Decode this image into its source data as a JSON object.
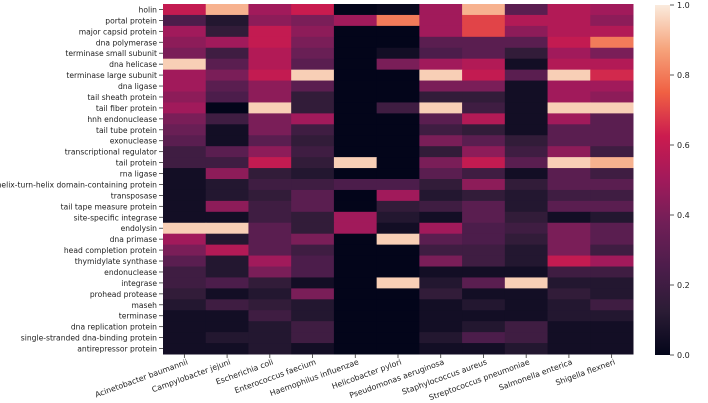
{
  "chart_data": {
    "type": "heatmap",
    "title": "",
    "xlabel": "",
    "ylabel": "",
    "colormap": "rocket",
    "color_range": [
      0.0,
      1.0
    ],
    "colorbar_ticks": [
      "0.0",
      "0.2",
      "0.4",
      "0.6",
      "0.8",
      "1.0"
    ],
    "columns": [
      "Acinetobacter baumannii",
      "Campylobacter jejuni",
      "Escherichia coli",
      "Enterococcus faecium",
      "Haemophilus influenzae",
      "Helicobacter pylori",
      "Pseudomonas aeruginosa",
      "Staphylococcus aureus",
      "Streptococcus pneumoniae",
      "Salmonella enterica",
      "Shigella flexneri"
    ],
    "rows": [
      "holin",
      "portal protein",
      "major capsid protein",
      "dna polymerase",
      "terminase small subunit",
      "dna helicase",
      "terminase large subunit",
      "dna ligase",
      "tail sheath protein",
      "tail fiber protein",
      "hnh endonuclease",
      "tail tube protein",
      "exonuclease",
      "transcriptional regulator",
      "tail protein",
      "rna ligase",
      "helix-turn-helix domain-containing protein",
      "transposase",
      "tail tape measure protein",
      "site-specific integrase",
      "endolysin",
      "dna primase",
      "head completion protein",
      "thymidylate synthase",
      "endonuclease",
      "integrase",
      "prohead protease",
      "maseh",
      "terminase",
      "dna replication protein",
      "single-stranded dna-binding protein",
      "antirepressor protein"
    ],
    "values": [
      [
        0.6,
        0.9,
        0.5,
        0.62,
        0.0,
        0.02,
        0.5,
        0.9,
        0.3,
        0.55,
        0.5
      ],
      [
        0.25,
        0.1,
        0.45,
        0.4,
        0.5,
        0.8,
        0.5,
        0.7,
        0.55,
        0.55,
        0.45
      ],
      [
        0.5,
        0.15,
        0.6,
        0.45,
        0.0,
        0.0,
        0.5,
        0.7,
        0.45,
        0.55,
        0.55
      ],
      [
        0.45,
        0.5,
        0.6,
        0.4,
        0.0,
        0.0,
        0.3,
        0.3,
        0.3,
        0.6,
        0.8
      ],
      [
        0.4,
        0.2,
        0.55,
        0.35,
        0.0,
        0.05,
        0.25,
        0.3,
        0.15,
        0.5,
        0.4
      ],
      [
        0.95,
        0.3,
        0.55,
        0.3,
        0.0,
        0.4,
        0.5,
        0.55,
        0.05,
        0.55,
        0.55
      ],
      [
        0.5,
        0.4,
        0.6,
        0.95,
        0.0,
        0.0,
        0.95,
        0.6,
        0.3,
        0.95,
        0.65
      ],
      [
        0.5,
        0.3,
        0.45,
        0.3,
        0.0,
        0.0,
        0.4,
        0.4,
        0.05,
        0.5,
        0.5
      ],
      [
        0.45,
        0.25,
        0.45,
        0.15,
        0.0,
        0.0,
        0.15,
        0.15,
        0.05,
        0.5,
        0.45
      ],
      [
        0.5,
        0.0,
        0.95,
        0.15,
        0.0,
        0.2,
        0.95,
        0.2,
        0.05,
        0.95,
        0.95
      ],
      [
        0.4,
        0.2,
        0.4,
        0.5,
        0.0,
        0.0,
        0.3,
        0.55,
        0.05,
        0.5,
        0.3
      ],
      [
        0.35,
        0.05,
        0.4,
        0.2,
        0.0,
        0.0,
        0.2,
        0.15,
        0.05,
        0.3,
        0.3
      ],
      [
        0.3,
        0.05,
        0.3,
        0.15,
        0.0,
        0.0,
        0.4,
        0.3,
        0.15,
        0.3,
        0.3
      ],
      [
        0.2,
        0.3,
        0.45,
        0.2,
        0.0,
        0.0,
        0.15,
        0.45,
        0.2,
        0.45,
        0.2
      ],
      [
        0.2,
        0.2,
        0.6,
        0.15,
        0.95,
        0.0,
        0.4,
        0.6,
        0.3,
        0.95,
        0.9
      ],
      [
        0.05,
        0.45,
        0.15,
        0.1,
        0.0,
        0.0,
        0.3,
        0.2,
        0.05,
        0.3,
        0.2
      ],
      [
        0.05,
        0.1,
        0.2,
        0.2,
        0.25,
        0.25,
        0.15,
        0.45,
        0.15,
        0.3,
        0.3
      ],
      [
        0.05,
        0.1,
        0.15,
        0.3,
        0.0,
        0.5,
        0.1,
        0.15,
        0.1,
        0.2,
        0.2
      ],
      [
        0.05,
        0.45,
        0.2,
        0.3,
        0.0,
        0.15,
        0.2,
        0.3,
        0.1,
        0.3,
        0.3
      ],
      [
        0.05,
        0.05,
        0.2,
        0.15,
        0.5,
        0.1,
        0.05,
        0.3,
        0.15,
        0.05,
        0.1
      ],
      [
        0.95,
        0.95,
        0.3,
        0.15,
        0.5,
        0.05,
        0.5,
        0.25,
        0.2,
        0.4,
        0.3
      ],
      [
        0.5,
        0.1,
        0.3,
        0.4,
        0.0,
        0.95,
        0.3,
        0.25,
        0.15,
        0.4,
        0.3
      ],
      [
        0.4,
        0.55,
        0.3,
        0.2,
        0.0,
        0.0,
        0.2,
        0.2,
        0.1,
        0.4,
        0.2
      ],
      [
        0.3,
        0.1,
        0.5,
        0.25,
        0.0,
        0.0,
        0.4,
        0.2,
        0.1,
        0.6,
        0.5
      ],
      [
        0.2,
        0.1,
        0.4,
        0.25,
        0.0,
        0.0,
        0.05,
        0.05,
        0.05,
        0.2,
        0.2
      ],
      [
        0.2,
        0.25,
        0.15,
        0.05,
        0.0,
        0.95,
        0.1,
        0.3,
        0.95,
        0.1,
        0.1
      ],
      [
        0.15,
        0.05,
        0.1,
        0.4,
        0.0,
        0.0,
        0.15,
        0.05,
        0.05,
        0.15,
        0.1
      ],
      [
        0.1,
        0.2,
        0.15,
        0.1,
        0.0,
        0.0,
        0.05,
        0.1,
        0.05,
        0.1,
        0.2
      ],
      [
        0.05,
        0.05,
        0.2,
        0.1,
        0.0,
        0.0,
        0.05,
        0.05,
        0.05,
        0.1,
        0.1
      ],
      [
        0.05,
        0.05,
        0.1,
        0.2,
        0.0,
        0.0,
        0.05,
        0.1,
        0.2,
        0.05,
        0.05
      ],
      [
        0.05,
        0.1,
        0.1,
        0.2,
        0.0,
        0.0,
        0.1,
        0.25,
        0.2,
        0.05,
        0.05
      ],
      [
        0.05,
        0.05,
        0.1,
        0.05,
        0.0,
        0.0,
        0.05,
        0.05,
        0.1,
        0.05,
        0.05
      ]
    ]
  }
}
